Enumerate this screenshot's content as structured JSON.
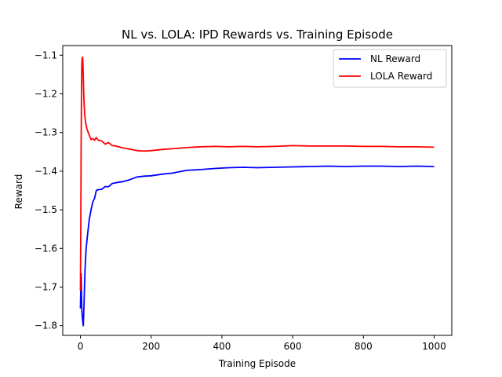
{
  "chart_data": {
    "type": "line",
    "title": "NL vs. LOLA: IPD Rewards vs. Training Episode",
    "xlabel": "Training Episode",
    "ylabel": "Reward",
    "xlim": [
      -50,
      1050
    ],
    "ylim": [
      -1.825,
      -1.075
    ],
    "xticks": [
      0,
      200,
      400,
      600,
      800,
      1000
    ],
    "yticks": [
      -1.8,
      -1.7,
      -1.6,
      -1.5,
      -1.4,
      -1.3,
      -1.2,
      -1.1
    ],
    "xtick_labels": [
      "0",
      "200",
      "400",
      "600",
      "800",
      "1000"
    ],
    "ytick_labels": [
      "−1.8",
      "−1.7",
      "−1.6",
      "−1.5",
      "−1.4",
      "−1.3",
      "−1.2",
      "−1.1"
    ],
    "grid": false,
    "legend_position": "top-right",
    "series": [
      {
        "name": "NL Reward",
        "color": "#0000ff",
        "x": [
          0,
          2,
          4,
          6,
          8,
          10,
          13,
          16,
          20,
          25,
          30,
          35,
          40,
          45,
          50,
          60,
          70,
          80,
          90,
          100,
          120,
          140,
          160,
          180,
          200,
          230,
          260,
          300,
          340,
          380,
          420,
          460,
          500,
          550,
          600,
          650,
          700,
          750,
          800,
          850,
          900,
          950,
          1000
        ],
        "y": [
          -1.755,
          -1.665,
          -1.76,
          -1.785,
          -1.8,
          -1.745,
          -1.655,
          -1.6,
          -1.565,
          -1.525,
          -1.5,
          -1.48,
          -1.47,
          -1.45,
          -1.448,
          -1.447,
          -1.44,
          -1.44,
          -1.432,
          -1.43,
          -1.427,
          -1.422,
          -1.415,
          -1.413,
          -1.412,
          -1.408,
          -1.405,
          -1.398,
          -1.396,
          -1.393,
          -1.391,
          -1.39,
          -1.391,
          -1.39,
          -1.389,
          -1.388,
          -1.387,
          -1.388,
          -1.387,
          -1.387,
          -1.388,
          -1.387,
          -1.388
        ]
      },
      {
        "name": "LOLA Reward",
        "color": "#ff0000",
        "x": [
          0,
          1,
          2,
          3,
          4,
          5,
          6,
          7,
          8,
          10,
          12,
          15,
          18,
          22,
          26,
          30,
          35,
          40,
          45,
          50,
          60,
          70,
          80,
          90,
          100,
          120,
          140,
          160,
          180,
          200,
          230,
          260,
          300,
          340,
          380,
          420,
          460,
          500,
          550,
          600,
          650,
          700,
          750,
          800,
          850,
          900,
          950,
          1000
        ],
        "y": [
          -1.71,
          -1.55,
          -1.35,
          -1.2,
          -1.125,
          -1.107,
          -1.105,
          -1.12,
          -1.16,
          -1.22,
          -1.255,
          -1.275,
          -1.29,
          -1.3,
          -1.31,
          -1.318,
          -1.316,
          -1.32,
          -1.313,
          -1.32,
          -1.322,
          -1.33,
          -1.326,
          -1.334,
          -1.335,
          -1.34,
          -1.343,
          -1.347,
          -1.348,
          -1.347,
          -1.344,
          -1.342,
          -1.339,
          -1.337,
          -1.336,
          -1.337,
          -1.336,
          -1.337,
          -1.336,
          -1.334,
          -1.335,
          -1.335,
          -1.335,
          -1.336,
          -1.336,
          -1.337,
          -1.337,
          -1.338
        ]
      }
    ]
  }
}
